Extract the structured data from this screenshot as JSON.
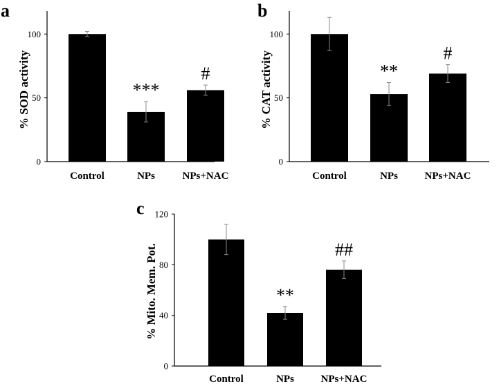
{
  "chart_data": [
    {
      "type": "bar",
      "panel": "a",
      "categories": [
        "Control",
        "NPs",
        "NPs+NAC"
      ],
      "values": [
        100,
        39,
        56
      ],
      "errors": [
        2,
        8,
        4
      ],
      "annotations": [
        "",
        "***",
        "#"
      ],
      "ylabel": "% SOD activity",
      "xlabel": "",
      "ylim": [
        0,
        118
      ],
      "yticks": [
        0,
        50,
        100
      ],
      "grid": false,
      "colors": {
        "bar": "#000000",
        "axis": "#000000"
      }
    },
    {
      "type": "bar",
      "panel": "b",
      "categories": [
        "Control",
        "NPs",
        "NPs+NAC"
      ],
      "values": [
        100,
        53,
        69
      ],
      "errors": [
        13,
        9,
        7
      ],
      "annotations": [
        "",
        "**",
        "#"
      ],
      "ylabel": "% CAT activity",
      "xlabel": "",
      "ylim": [
        0,
        118
      ],
      "yticks": [
        0,
        50,
        100
      ],
      "grid": false,
      "colors": {
        "bar": "#000000",
        "axis": "#000000"
      }
    },
    {
      "type": "bar",
      "panel": "c",
      "categories": [
        "Control",
        "NPs",
        "NPs+NAC"
      ],
      "values": [
        100,
        42,
        76
      ],
      "errors": [
        12,
        5,
        7
      ],
      "annotations": [
        "",
        "**",
        "##"
      ],
      "ylabel": "% Mito. Mem. Pot.",
      "xlabel": "",
      "ylim": [
        0,
        120
      ],
      "yticks": [
        0,
        40,
        80,
        120
      ],
      "grid": false,
      "colors": {
        "bar": "#000000",
        "axis": "#000000"
      }
    }
  ]
}
